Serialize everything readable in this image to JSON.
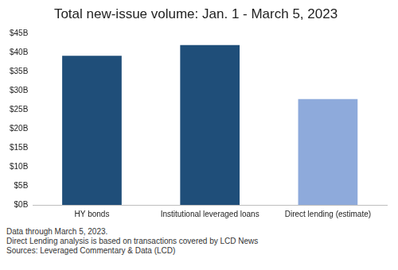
{
  "chart_data": {
    "type": "bar",
    "title": "Total new-issue volume: Jan. 1 - March 5, 2023",
    "categories": [
      "HY bonds",
      "Institutional leveraged loans",
      "Direct lending (estimate)"
    ],
    "values": [
      39.2,
      42.0,
      27.8
    ],
    "colors": [
      "#1f4e79",
      "#1f4e79",
      "#8eaadb"
    ],
    "ylim": [
      0,
      45
    ],
    "yticks": [
      {
        "value": 0,
        "label": "$0B"
      },
      {
        "value": 5,
        "label": "$5B"
      },
      {
        "value": 10,
        "label": "$10B"
      },
      {
        "value": 15,
        "label": "$15B"
      },
      {
        "value": 20,
        "label": "$20B"
      },
      {
        "value": 25,
        "label": "$25B"
      },
      {
        "value": 30,
        "label": "$30B"
      },
      {
        "value": 35,
        "label": "$35B"
      },
      {
        "value": 40,
        "label": "$40B"
      },
      {
        "value": 45,
        "label": "$45B"
      }
    ],
    "grid": false,
    "notes": [
      "Data through March 5, 2023.",
      "Direct Lending analysis is based on transactions covered by LCD News",
      "Sources: Leveraged Commentary & Data (LCD)"
    ]
  }
}
